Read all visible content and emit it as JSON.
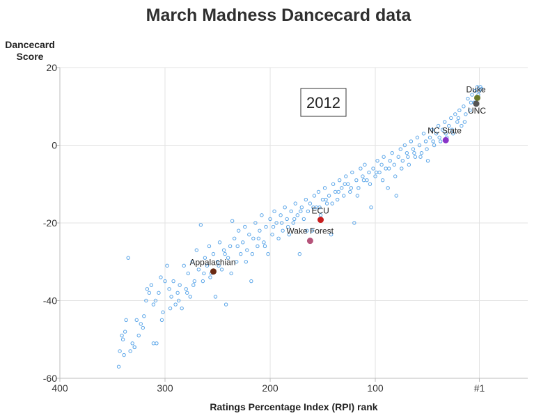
{
  "chart_data": {
    "type": "scatter",
    "title": "March Madness Dancecard data",
    "xlabel": "Ratings Percentage Index (RPI) rank",
    "ylabel_lines": [
      "Dancecard",
      "Score"
    ],
    "xlim": [
      400,
      -45
    ],
    "ylim": [
      -60,
      20
    ],
    "x_axis_reversed": true,
    "x_ticks": [
      {
        "value": 400,
        "label": "400"
      },
      {
        "value": 300,
        "label": "300"
      },
      {
        "value": 200,
        "label": "200"
      },
      {
        "value": 100,
        "label": "100"
      },
      {
        "value": 1,
        "label": "#1"
      }
    ],
    "y_ticks": [
      {
        "value": 20,
        "label": "20"
      },
      {
        "value": 0,
        "label": "0"
      },
      {
        "value": -20,
        "label": "-20"
      },
      {
        "value": -40,
        "label": "-40"
      },
      {
        "value": -60,
        "label": "-60"
      }
    ],
    "grid": true,
    "annotation": "2012",
    "colors": {
      "all_teams": "#5aa5e8",
      "axis": "#bdbdbd",
      "grid": "#e3e3e3"
    },
    "series": [
      {
        "role": "all_teams",
        "points": [
          [
            344,
            -57
          ],
          [
            343,
            -53
          ],
          [
            340,
            -50
          ],
          [
            341,
            -49
          ],
          [
            339,
            -54
          ],
          [
            337,
            -45
          ],
          [
            335,
            -29
          ],
          [
            338,
            -48
          ],
          [
            333,
            -53
          ],
          [
            331,
            -51
          ],
          [
            329,
            -52
          ],
          [
            327,
            -45
          ],
          [
            325,
            -49
          ],
          [
            323,
            -46
          ],
          [
            320,
            -44
          ],
          [
            318,
            -40
          ],
          [
            317,
            -37
          ],
          [
            315,
            -38
          ],
          [
            313,
            -36
          ],
          [
            311,
            -41
          ],
          [
            309,
            -40
          ],
          [
            308,
            -51
          ],
          [
            306,
            -38
          ],
          [
            304,
            -34
          ],
          [
            302,
            -43
          ],
          [
            300,
            -35
          ],
          [
            298,
            -31
          ],
          [
            296,
            -37
          ],
          [
            294,
            -39
          ],
          [
            292,
            -35
          ],
          [
            290,
            -41
          ],
          [
            288,
            -38
          ],
          [
            286,
            -36
          ],
          [
            284,
            -42
          ],
          [
            282,
            -31
          ],
          [
            280,
            -37
          ],
          [
            278,
            -33
          ],
          [
            276,
            -39
          ],
          [
            274,
            -30
          ],
          [
            272,
            -35
          ],
          [
            270,
            -27
          ],
          [
            268,
            -32
          ],
          [
            266,
            -20.5
          ],
          [
            264,
            -35
          ],
          [
            262,
            -29
          ],
          [
            260,
            -31
          ],
          [
            258,
            -26
          ],
          [
            256,
            -33
          ],
          [
            254,
            -28
          ],
          [
            252,
            -39
          ],
          [
            250,
            -30
          ],
          [
            248,
            -25
          ],
          [
            246,
            -32
          ],
          [
            244,
            -27
          ],
          [
            242,
            -41
          ],
          [
            240,
            -29
          ],
          [
            238,
            -26
          ],
          [
            236,
            -19.5
          ],
          [
            234,
            -24
          ],
          [
            232,
            -30
          ],
          [
            230,
            -22
          ],
          [
            228,
            -28
          ],
          [
            226,
            -25
          ],
          [
            224,
            -21
          ],
          [
            222,
            -27
          ],
          [
            220,
            -23
          ],
          [
            218,
            -35
          ],
          [
            216,
            -24
          ],
          [
            214,
            -20
          ],
          [
            212,
            -26
          ],
          [
            210,
            -22
          ],
          [
            208,
            -18
          ],
          [
            206,
            -25
          ],
          [
            204,
            -21
          ],
          [
            202,
            -28
          ],
          [
            200,
            -19
          ],
          [
            198,
            -23
          ],
          [
            196,
            -17
          ],
          [
            194,
            -20
          ],
          [
            192,
            -24
          ],
          [
            190,
            -18
          ],
          [
            188,
            -22
          ],
          [
            186,
            -16
          ],
          [
            184,
            -19
          ],
          [
            182,
            -23
          ],
          [
            180,
            -17
          ],
          [
            178,
            -20
          ],
          [
            176,
            -15
          ],
          [
            174,
            -18
          ],
          [
            172,
            -28
          ],
          [
            170,
            -16
          ],
          [
            168,
            -19
          ],
          [
            166,
            -14
          ],
          [
            164,
            -17
          ],
          [
            162,
            -15
          ],
          [
            160,
            -22
          ],
          [
            158,
            -13
          ],
          [
            156,
            -16
          ],
          [
            154,
            -12
          ],
          [
            152,
            -18
          ],
          [
            150,
            -14
          ],
          [
            148,
            -11
          ],
          [
            146,
            -15
          ],
          [
            144,
            -13
          ],
          [
            142,
            -23
          ],
          [
            140,
            -10
          ],
          [
            138,
            -12
          ],
          [
            136,
            -14
          ],
          [
            134,
            -9
          ],
          [
            132,
            -11
          ],
          [
            130,
            -13
          ],
          [
            128,
            -8
          ],
          [
            126,
            -10
          ],
          [
            124,
            -12
          ],
          [
            122,
            -7
          ],
          [
            120,
            -20
          ],
          [
            118,
            -9
          ],
          [
            116,
            -11
          ],
          [
            114,
            -6
          ],
          [
            112,
            -8
          ],
          [
            110,
            -5
          ],
          [
            108,
            -9
          ],
          [
            106,
            -7
          ],
          [
            104,
            -16
          ],
          [
            102,
            -6
          ],
          [
            100,
            -8
          ],
          [
            98,
            -4
          ],
          [
            96,
            -7
          ],
          [
            94,
            -5
          ],
          [
            92,
            -3
          ],
          [
            90,
            -6
          ],
          [
            88,
            -11
          ],
          [
            86,
            -4
          ],
          [
            84,
            -2
          ],
          [
            82,
            -5
          ],
          [
            80,
            -13
          ],
          [
            78,
            -3
          ],
          [
            76,
            -1
          ],
          [
            74,
            -4
          ],
          [
            72,
            0
          ],
          [
            70,
            -2
          ],
          [
            68,
            -5
          ],
          [
            66,
            1
          ],
          [
            64,
            -1
          ],
          [
            62,
            -3
          ],
          [
            60,
            2
          ],
          [
            58,
            0
          ],
          [
            56,
            -2
          ],
          [
            54,
            3
          ],
          [
            52,
            1
          ],
          [
            50,
            -4
          ],
          [
            48,
            2
          ],
          [
            46,
            4
          ],
          [
            44,
            0
          ],
          [
            42,
            3
          ],
          [
            40,
            5
          ],
          [
            38,
            1
          ],
          [
            36,
            4
          ],
          [
            34,
            6
          ],
          [
            32,
            2
          ],
          [
            30,
            5
          ],
          [
            28,
            7
          ],
          [
            26,
            3
          ],
          [
            24,
            8
          ],
          [
            22,
            6
          ],
          [
            20,
            9
          ],
          [
            18,
            5
          ],
          [
            16,
            10
          ],
          [
            14,
            8
          ],
          [
            12,
            12
          ],
          [
            10,
            9
          ],
          [
            8,
            13
          ],
          [
            6,
            11
          ],
          [
            5,
            14
          ],
          [
            4,
            12
          ],
          [
            3,
            15
          ],
          [
            2,
            13
          ],
          [
            1,
            14
          ],
          [
            0,
            15
          ],
          [
            -1,
            14.5
          ],
          [
            329,
            -52
          ],
          [
            321,
            -47
          ],
          [
            311,
            -51
          ],
          [
            303,
            -45
          ],
          [
            295,
            -42
          ],
          [
            287,
            -40
          ],
          [
            279,
            -38
          ],
          [
            273,
            -36
          ],
          [
            263,
            -33
          ],
          [
            257,
            -34
          ],
          [
            249,
            -31
          ],
          [
            243,
            -28
          ],
          [
            237,
            -33
          ],
          [
            231,
            -26
          ],
          [
            223,
            -30
          ],
          [
            217,
            -28
          ],
          [
            211,
            -24
          ],
          [
            205,
            -26
          ],
          [
            197,
            -21
          ],
          [
            189,
            -20
          ],
          [
            183,
            -21
          ],
          [
            177,
            -19
          ],
          [
            171,
            -17
          ],
          [
            165,
            -22
          ],
          [
            159,
            -16
          ],
          [
            153,
            -16
          ],
          [
            147,
            -14
          ],
          [
            141,
            -15
          ],
          [
            135,
            -12
          ],
          [
            129,
            -10
          ],
          [
            123,
            -11
          ],
          [
            117,
            -13
          ],
          [
            111,
            -9
          ],
          [
            105,
            -10
          ],
          [
            99,
            -7
          ],
          [
            93,
            -9
          ],
          [
            87,
            -6
          ],
          [
            81,
            -8
          ],
          [
            75,
            -6
          ],
          [
            69,
            -3
          ],
          [
            63,
            -2
          ],
          [
            57,
            -3
          ],
          [
            51,
            -1
          ],
          [
            45,
            1
          ],
          [
            39,
            2
          ],
          [
            33,
            3
          ],
          [
            27,
            4
          ],
          [
            21,
            7
          ],
          [
            15,
            6
          ],
          [
            9,
            11
          ]
        ]
      }
    ],
    "highlighted": [
      {
        "name": "Duke",
        "x": 3,
        "y": 12.2,
        "color": "#6b7a2a",
        "label_dx": -16,
        "label_dy": -8
      },
      {
        "name": "UNC",
        "x": 4,
        "y": 10.7,
        "color": "#555555",
        "label_dx": -12,
        "label_dy": 14
      },
      {
        "name": "NC State",
        "x": 33,
        "y": 1.3,
        "color": "#8a35c8",
        "label_dx": -26,
        "label_dy": -10
      },
      {
        "name": "ECU",
        "x": 152,
        "y": -19.2,
        "color": "#c81e1e",
        "label_dx": -13,
        "label_dy": -9
      },
      {
        "name": "Wake Forest",
        "x": 162,
        "y": -24.6,
        "color": "#b5547a",
        "label_dx": -34,
        "label_dy": -10
      },
      {
        "name": "Appalachian",
        "x": 254,
        "y": -32.5,
        "color": "#6a2a12",
        "label_dx": -34,
        "label_dy": -9
      }
    ]
  }
}
